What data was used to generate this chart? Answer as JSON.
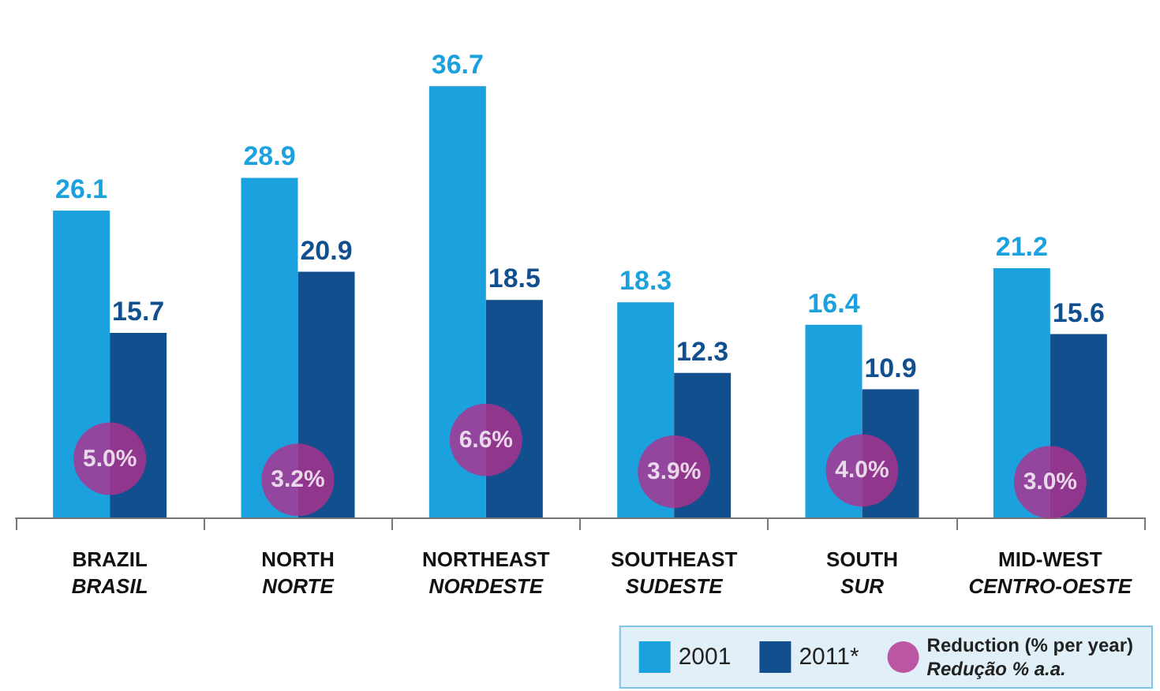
{
  "chart_data": {
    "type": "bar",
    "categories": [
      "BRAZIL\nBRASIL",
      "NORTH\nNORTE",
      "NORTHEAST\nNORDESTE",
      "SOUTHEAST\nSUDESTE",
      "SOUTH\nSUR",
      "MID-WEST\nCENTRO-OESTE"
    ],
    "series": [
      {
        "name": "2001",
        "color": "#1ba1dd",
        "values": [
          26.1,
          28.9,
          36.7,
          18.3,
          16.4,
          21.2
        ]
      },
      {
        "name": "2011*",
        "color": "#114f8e",
        "values": [
          15.7,
          20.9,
          18.5,
          12.3,
          10.9,
          15.6
        ]
      },
      {
        "name": "Reduction (% per year)\nRedução % a.a.",
        "type": "scatter",
        "color": "#b2308d",
        "values": [
          5.0,
          3.2,
          6.6,
          3.9,
          4.0,
          3.0
        ],
        "value_labels": [
          "5.0%",
          "3.2%",
          "6.6%",
          "3.9%",
          "4.0%",
          "3.0%"
        ]
      }
    ],
    "data_labels": true,
    "legend": "bottom right",
    "grid": false
  }
}
